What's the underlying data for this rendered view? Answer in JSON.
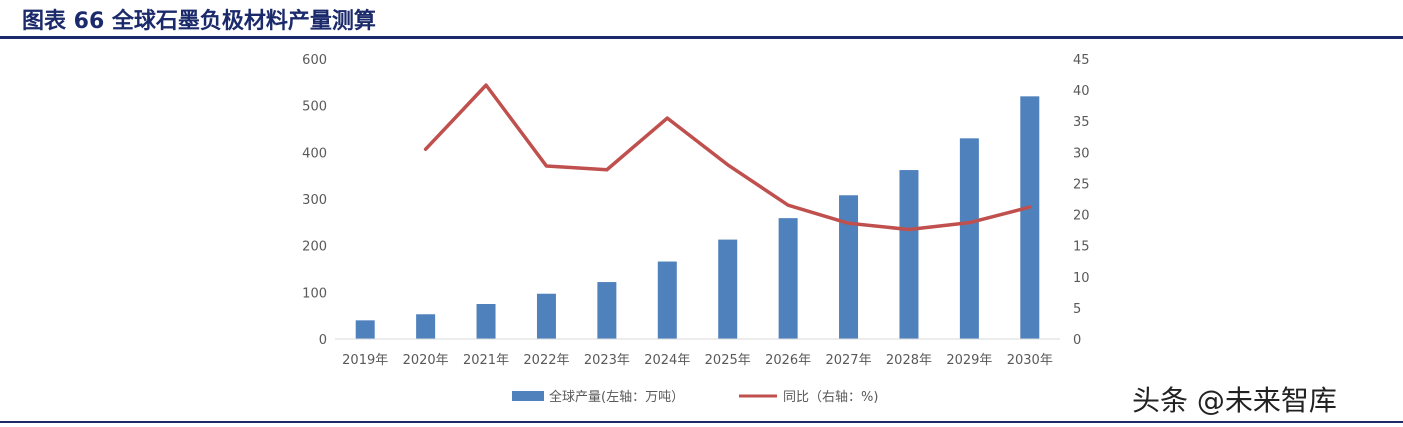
{
  "figure": {
    "title": "图表 66 全球石墨负极材料产量测算",
    "watermark": "头条 @未来智库"
  },
  "colors": {
    "title": "#1b2a6b",
    "bar": "#4f81bd",
    "line": "#c0504d",
    "tick": "#595959"
  },
  "chart_data": {
    "type": "bar",
    "categories": [
      "2019年",
      "2020年",
      "2021年",
      "2022年",
      "2023年",
      "2024年",
      "2025年",
      "2026年",
      "2027年",
      "2028年",
      "2029年",
      "2030年"
    ],
    "series": [
      {
        "name": "全球产量(左轴：万吨）",
        "type": "bar",
        "axis": "left",
        "values": [
          40,
          53,
          75,
          97,
          122,
          166,
          213,
          259,
          308,
          362,
          430,
          520
        ]
      },
      {
        "name": "同比（右轴：%)",
        "type": "line",
        "axis": "right",
        "values": [
          null,
          30.5,
          40.8,
          27.8,
          27.2,
          35.5,
          28.0,
          21.5,
          18.6,
          17.6,
          18.7,
          21.2
        ]
      }
    ],
    "left_axis": {
      "ylim": [
        0,
        600
      ],
      "ticks": [
        "0",
        "100",
        "200",
        "300",
        "400",
        "500",
        "600"
      ]
    },
    "right_axis": {
      "ylim": [
        0,
        45
      ],
      "ticks": [
        "0",
        "5",
        "10",
        "15",
        "20",
        "25",
        "30",
        "35",
        "40",
        "45"
      ]
    },
    "grid": false,
    "legend_position": "bottom"
  }
}
